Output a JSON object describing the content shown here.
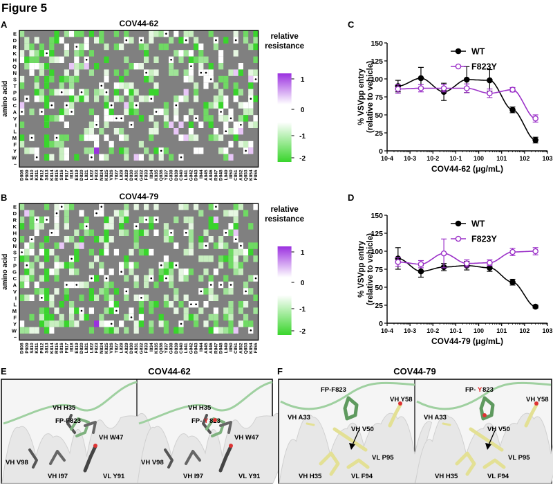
{
  "figure_title": "Figure 5",
  "panel_letters": {
    "a": "A",
    "b": "B",
    "c": "C",
    "d": "D",
    "e": "E",
    "f": "F"
  },
  "heatmap_ylabel": "amino acid",
  "colorbar": {
    "title_line1": "relative",
    "title_line2": "resistance",
    "ticks": [
      "1",
      "0",
      "-1",
      "-2"
    ]
  },
  "amino_acids": [
    "E",
    "D",
    "R",
    "K",
    "H",
    "Q",
    "N",
    "S",
    "T",
    "P",
    "G",
    "C",
    "A",
    "V",
    "I",
    "L",
    "M",
    "F",
    "Y",
    "W",
    "–"
  ],
  "sites": [
    "D808",
    "P809",
    "S810",
    "K811",
    "P812",
    "S813",
    "K814",
    "R815",
    "S816",
    "F817",
    "I818",
    "E819",
    "D820",
    "L821",
    "L822",
    "F823",
    "N824",
    "K825",
    "V826",
    "T827",
    "L828",
    "A829",
    "D830",
    "A831",
    "G832",
    "F833",
    "I834",
    "K835",
    "Q836",
    "Y837",
    "G838",
    "D839",
    "C840",
    "L841",
    "G842",
    "D843",
    "I844",
    "A845",
    "A846",
    "R847",
    "D848",
    "L849",
    "I850",
    "C851",
    "A852",
    "Q853",
    "K854",
    "F855"
  ],
  "heatmaps": [
    {
      "title": "COV44-62",
      "panel": "A"
    },
    {
      "title": "COV44-79",
      "panel": "B"
    }
  ],
  "chart_data": [
    {
      "type": "line",
      "panel": "C",
      "title": "",
      "xlabel": "COV44-62 (μg/mL)",
      "ylabel_line1": "% VSVpp entry",
      "ylabel_line2": "(relative to vehicle)",
      "xscale": "log",
      "xlim": [
        0.0001,
        1000
      ],
      "ylim": [
        0,
        150
      ],
      "yticks": [
        "0",
        "25",
        "50",
        "75",
        "100",
        "125",
        "150"
      ],
      "xticks": [
        "10-4",
        "10-3",
        "10-2",
        "10-1",
        "100",
        "101",
        "102",
        "103"
      ],
      "legend_position": "top-right",
      "series": [
        {
          "name": "WT",
          "color": "#000000",
          "marker": "filled",
          "x": [
            0.0003,
            0.003,
            0.03,
            0.3,
            3,
            30,
            300
          ],
          "y": [
            90,
            101,
            82,
            99,
            98,
            57,
            15
          ],
          "err": [
            8,
            15,
            12,
            18,
            15,
            4,
            4
          ]
        },
        {
          "name": "F823Y",
          "color": "#9b30c8",
          "marker": "open",
          "x": [
            0.0003,
            0.003,
            0.03,
            0.3,
            3,
            30,
            300
          ],
          "y": [
            86,
            87,
            87,
            87,
            80,
            85,
            45
          ],
          "err": [
            6,
            5,
            5,
            6,
            6,
            3,
            5
          ]
        }
      ]
    },
    {
      "type": "line",
      "panel": "D",
      "title": "",
      "xlabel": "COV44-79 (μg/mL)",
      "ylabel_line1": "% VSVpp entry",
      "ylabel_line2": "(relative to vehicle)",
      "xscale": "log",
      "xlim": [
        0.0001,
        1000
      ],
      "ylim": [
        0,
        150
      ],
      "yticks": [
        "0",
        "25",
        "50",
        "75",
        "100",
        "125",
        "150"
      ],
      "xticks": [
        "10-4",
        "10-3",
        "10-2",
        "10-1",
        "100",
        "101",
        "102",
        "103"
      ],
      "legend_position": "top-right",
      "series": [
        {
          "name": "WT",
          "color": "#000000",
          "marker": "filled",
          "x": [
            0.0003,
            0.003,
            0.03,
            0.3,
            3,
            30,
            300
          ],
          "y": [
            90,
            72,
            78,
            80,
            77,
            57,
            23
          ],
          "err": [
            15,
            8,
            5,
            6,
            5,
            4,
            2
          ]
        },
        {
          "name": "F823Y",
          "color": "#9b30c8",
          "marker": "open",
          "x": [
            0.0003,
            0.003,
            0.03,
            0.3,
            3,
            30,
            300
          ],
          "y": [
            85,
            82,
            97,
            83,
            84,
            99,
            100
          ],
          "err": [
            6,
            5,
            20,
            5,
            4,
            5,
            5
          ]
        }
      ]
    }
  ],
  "structures": {
    "e_title": "COV44-62",
    "f_title": "COV44-79",
    "e_left_labels": [
      "VH H35",
      "FP-F823",
      "VH W47",
      "VH V98",
      "VH I97",
      "VL Y91"
    ],
    "e_right_labels": [
      "VH H35",
      "FP-",
      "Y",
      "823",
      "VH W47",
      "VH V98",
      "VH I97",
      "VL Y91"
    ],
    "f_left_labels": [
      "FP-F823",
      "VH Y58",
      "VH A33",
      "VH V50",
      "VL P95",
      "VH H35",
      "VL F94"
    ],
    "f_right_labels": [
      "FP-",
      "Y",
      "823",
      "VH Y58",
      "VH A33",
      "VH V50",
      "VL P95",
      "VH H35",
      "VL F94"
    ]
  }
}
